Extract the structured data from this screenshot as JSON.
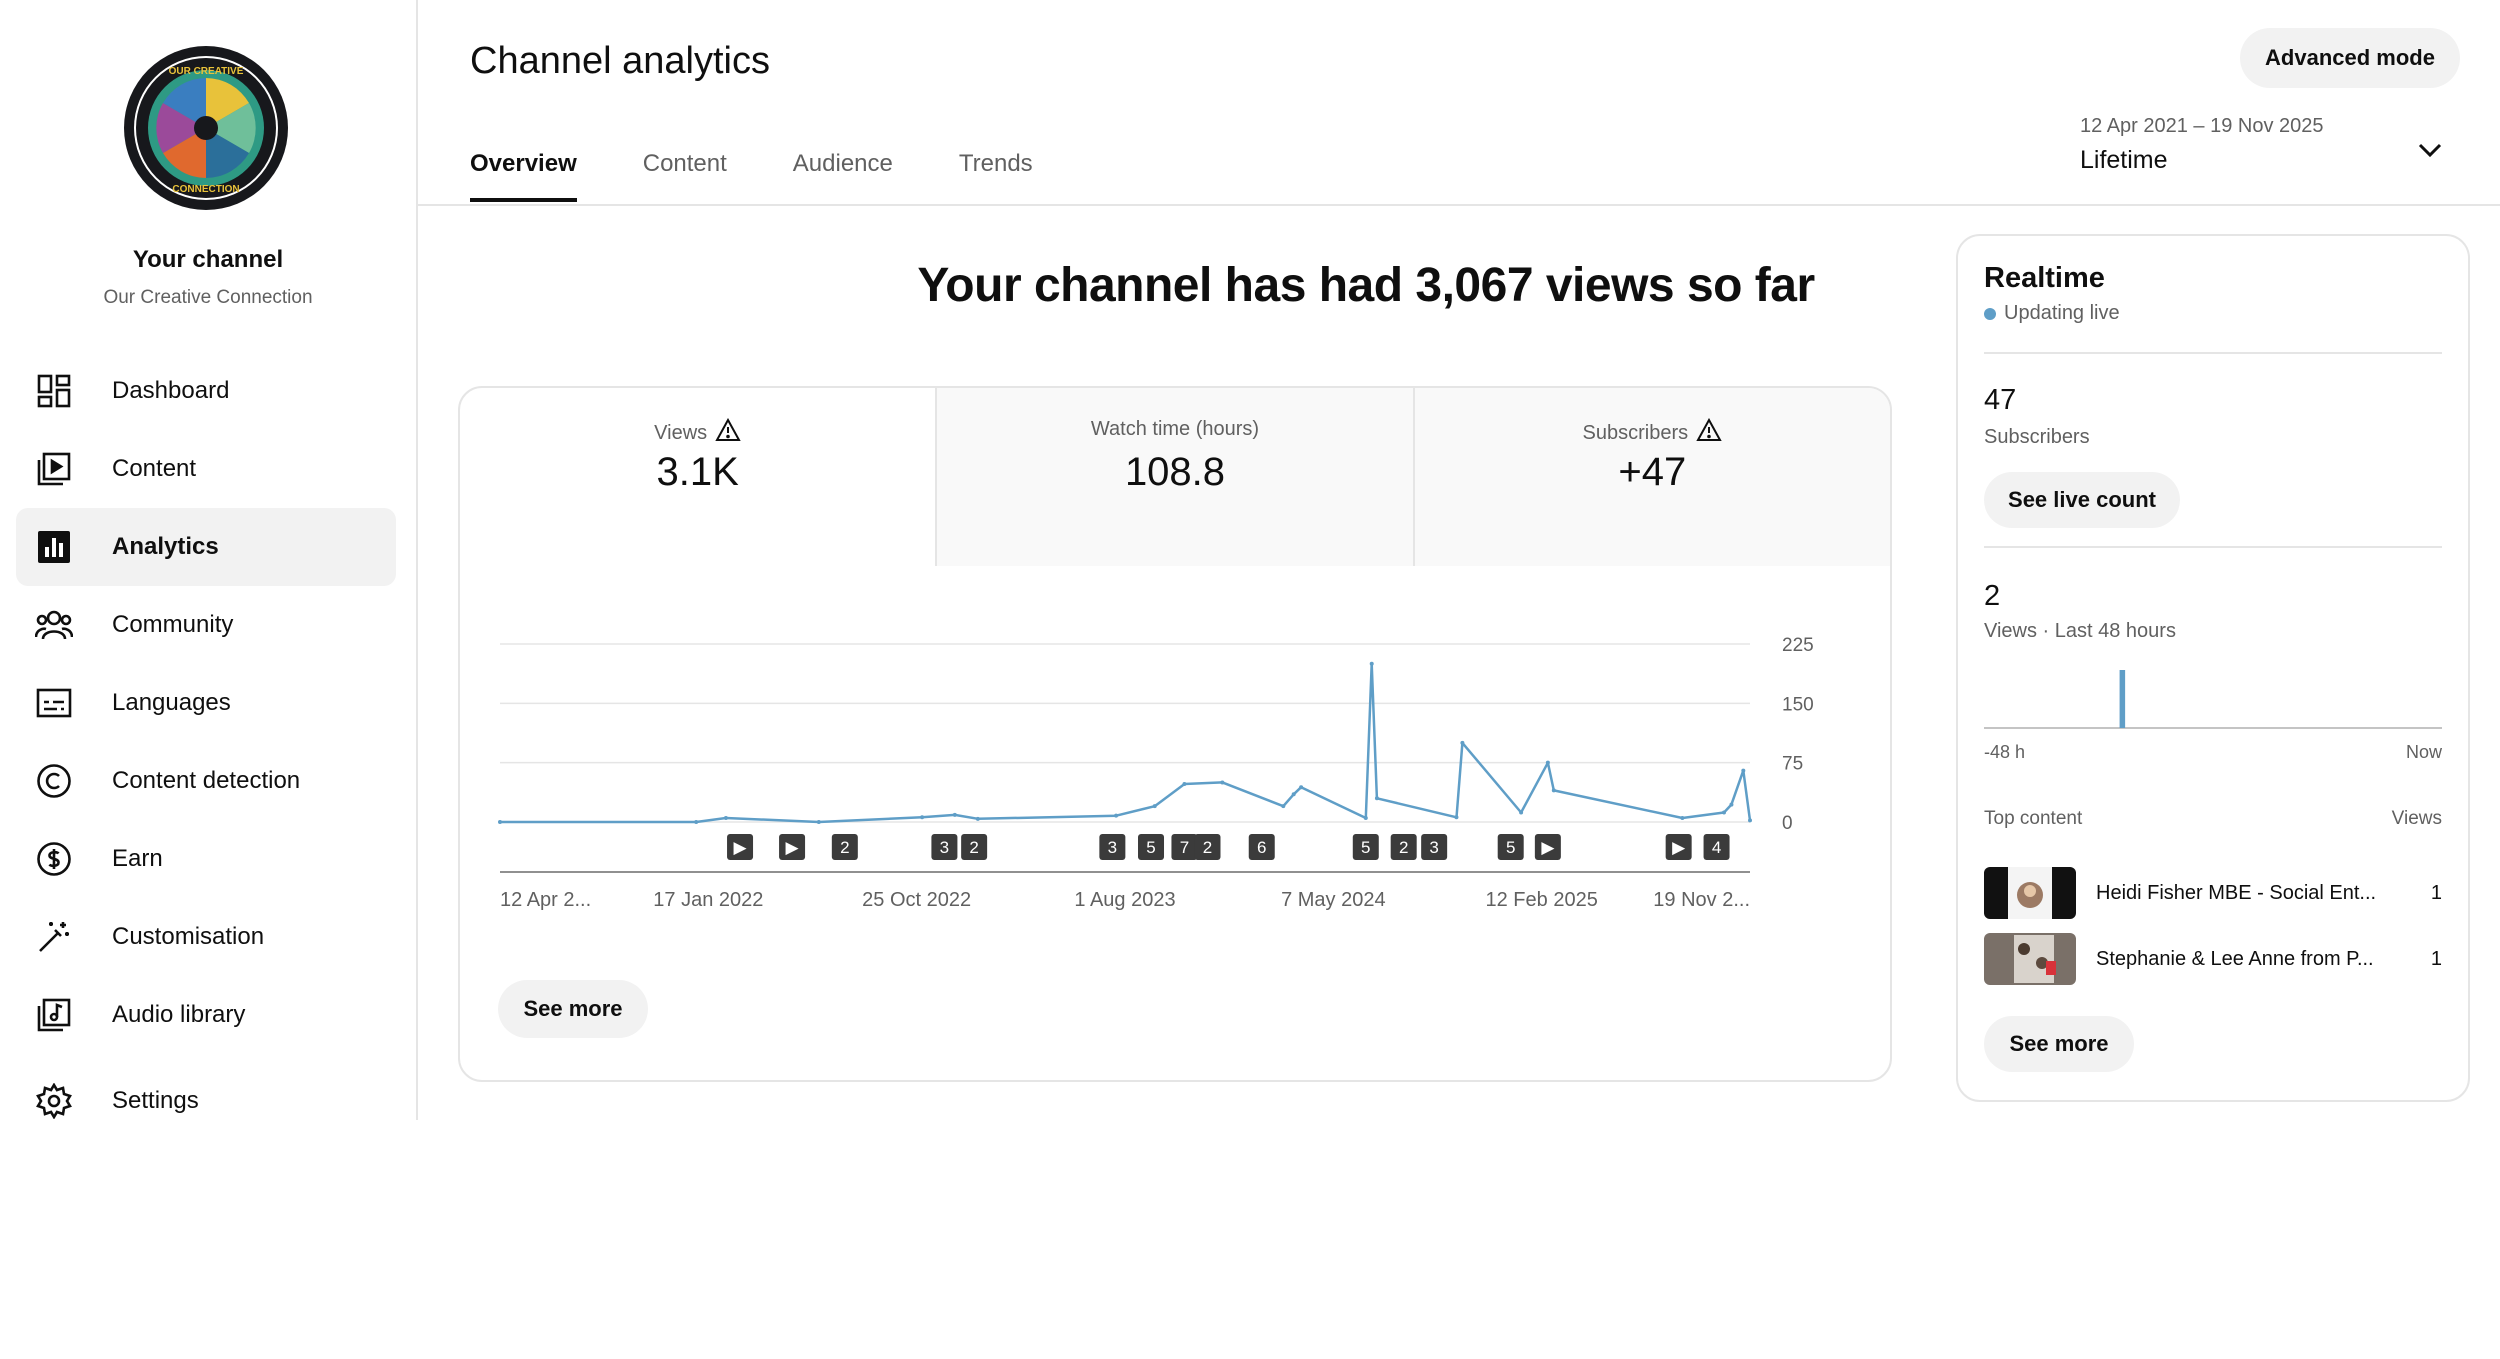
{
  "sidebar": {
    "channel_title": "Your channel",
    "channel_name": "Our Creative Connection",
    "logo_text": "OUR CREATIVE CONNECTION",
    "items": [
      {
        "label": "Dashboard",
        "icon": "dashboard-icon"
      },
      {
        "label": "Content",
        "icon": "content-icon"
      },
      {
        "label": "Analytics",
        "icon": "analytics-icon",
        "active": true
      },
      {
        "label": "Community",
        "icon": "community-icon"
      },
      {
        "label": "Languages",
        "icon": "languages-icon"
      },
      {
        "label": "Content detection",
        "icon": "content-detection-icon"
      },
      {
        "label": "Earn",
        "icon": "earn-icon"
      },
      {
        "label": "Customisation",
        "icon": "customisation-icon"
      },
      {
        "label": "Audio library",
        "icon": "audio-library-icon"
      },
      {
        "label": "Settings",
        "icon": "settings-icon"
      }
    ]
  },
  "header": {
    "title": "Channel analytics",
    "advanced_mode": "Advanced mode",
    "tabs": [
      {
        "label": "Overview",
        "active": true
      },
      {
        "label": "Content"
      },
      {
        "label": "Audience"
      },
      {
        "label": "Trends"
      }
    ],
    "date_range": "12 Apr 2021 – 19 Nov 2025",
    "date_label": "Lifetime"
  },
  "overview": {
    "headline": "Your channel has had 3,067 views so far",
    "metrics": [
      {
        "label": "Views",
        "value": "3.1K",
        "warning": true,
        "selected": true
      },
      {
        "label": "Watch time (hours)",
        "value": "108.8",
        "warning": false,
        "selected": false
      },
      {
        "label": "Subscribers",
        "value": "+47",
        "warning": true,
        "selected": false
      }
    ],
    "see_more": "See more"
  },
  "chart_data": {
    "type": "line",
    "title": "",
    "xlabel": "",
    "ylabel": "",
    "x_tick_labels": [
      "12 Apr 2...",
      "17 Jan 2022",
      "25 Oct 2022",
      "1 Aug 2023",
      "7 May 2024",
      "12 Feb 2025",
      "19 Nov 2..."
    ],
    "y_ticks": [
      0,
      75,
      150,
      225
    ],
    "ylim": [
      0,
      225
    ],
    "grid": true,
    "series": [
      {
        "name": "Views",
        "color": "#5f9ec7",
        "x": [
          "12 Apr 2021",
          "01 Jan 2022",
          "10 Feb 2022",
          "15 Jun 2022",
          "01 Nov 2022",
          "15 Dec 2022",
          "15 Jan 2023",
          "20 Jul 2023",
          "10 Sep 2023",
          "20 Oct 2023",
          "10 Dec 2023",
          "01 Mar 2024",
          "15 Mar 2024",
          "25 Mar 2024",
          "20 Jun 2024",
          "28 Jun 2024",
          "05 Jul 2024",
          "20 Oct 2024",
          "28 Oct 2024",
          "15 Jan 2025",
          "20 Feb 2025",
          "28 Feb 2025",
          "20 Aug 2025",
          "15 Oct 2025",
          "25 Oct 2025",
          "10 Nov 2025",
          "19 Nov 2025"
        ],
        "y": [
          0,
          0,
          5,
          0,
          6,
          9,
          4,
          8,
          20,
          48,
          50,
          20,
          35,
          44,
          5,
          200,
          30,
          6,
          100,
          12,
          75,
          40,
          5,
          12,
          22,
          65,
          2
        ]
      }
    ],
    "video_markers": [
      {
        "date": "01 Mar 2022",
        "label": "▶"
      },
      {
        "date": "10 May 2022",
        "label": "▶"
      },
      {
        "date": "20 Jul 2022",
        "label": "2"
      },
      {
        "date": "01 Dec 2022",
        "label": "3"
      },
      {
        "date": "10 Jan 2023",
        "label": "2"
      },
      {
        "date": "15 Jul 2023",
        "label": "3"
      },
      {
        "date": "05 Sep 2023",
        "label": "5"
      },
      {
        "date": "20 Oct 2023",
        "label": "7"
      },
      {
        "date": "20 Nov 2023",
        "label": "2"
      },
      {
        "date": "01 Feb 2024",
        "label": "6"
      },
      {
        "date": "20 Jun 2024",
        "label": "5"
      },
      {
        "date": "10 Aug 2024",
        "label": "2"
      },
      {
        "date": "20 Sep 2024",
        "label": "3"
      },
      {
        "date": "01 Jan 2025",
        "label": "5"
      },
      {
        "date": "20 Feb 2025",
        "label": "▶"
      },
      {
        "date": "15 Aug 2025",
        "label": "▶"
      },
      {
        "date": "05 Oct 2025",
        "label": "4"
      }
    ]
  },
  "realtime": {
    "title": "Realtime",
    "live": "Updating live",
    "subscribers_value": "47",
    "subscribers_label": "Subscribers",
    "see_live_count": "See live count",
    "views_value": "2",
    "views_label": "Views · Last 48 hours",
    "mini_bars": [
      0,
      0,
      0,
      0,
      0,
      0,
      0,
      0,
      0,
      0,
      0,
      0,
      0,
      0,
      2,
      0,
      0,
      0,
      0,
      0,
      0,
      0,
      0,
      0,
      0,
      0,
      0,
      0,
      0,
      0,
      0,
      0,
      0,
      0,
      0,
      0,
      0,
      0,
      0,
      0,
      0,
      0,
      0,
      0,
      0,
      0,
      0,
      0
    ],
    "axis_left": "-48 h",
    "axis_right": "Now",
    "top_content_label": "Top content",
    "top_content_views_label": "Views",
    "top_content": [
      {
        "title": "Heidi Fisher MBE - Social Ent...",
        "views": "1"
      },
      {
        "title": "Stephanie & Lee Anne from P...",
        "views": "1"
      }
    ],
    "see_more": "See more"
  }
}
